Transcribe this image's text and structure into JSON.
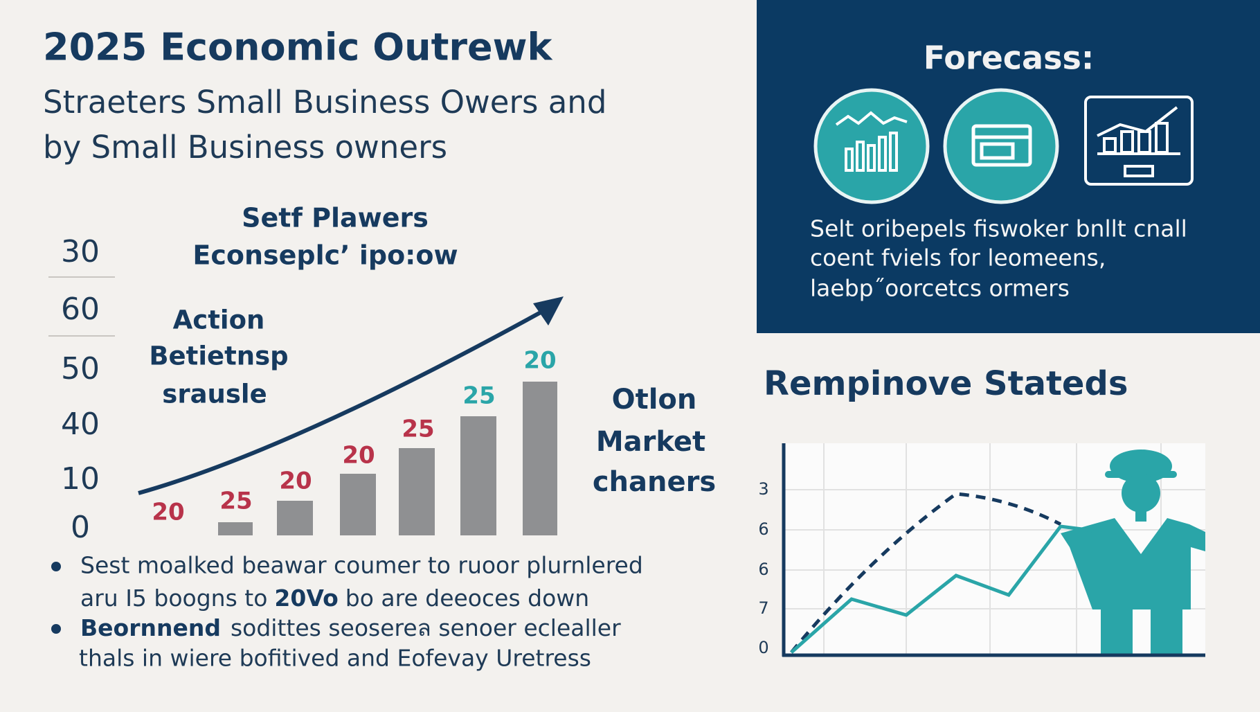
{
  "header": {
    "title": "2025 Economic Outrewk",
    "subtitle": [
      "Straeters Small Business Owers and",
      "by Small Business owners"
    ]
  },
  "left_chart": {
    "title": [
      "Setf Plawers",
      "Econseplc’ ipo:ow"
    ],
    "y_labels": [
      "30",
      "60",
      "50",
      "40",
      "10",
      "0"
    ],
    "annotation": [
      "Action",
      "Betietnsp",
      "srausle"
    ],
    "bar_labels": [
      "20",
      "25",
      "20",
      "20",
      "25",
      "25",
      "20"
    ],
    "side_note": [
      "Otlon",
      "Market",
      "chaners"
    ]
  },
  "bullets": [
    {
      "lines": [
        [
          "Sest moalked beawar coumer to ruoor plurnlered"
        ],
        [
          "aru I5 boogns to",
          "20Vo",
          "bo are deeoces down"
        ]
      ]
    },
    {
      "lines": [
        [
          "Beornnend",
          "soditte​s seosereล senoer eclealler"
        ],
        [
          "thals in wiere bofitived and Eofevay Uretress"
        ]
      ]
    }
  ],
  "forecast": {
    "title": "Forecass:",
    "text": [
      "Selt oribepels fiswoker bnllt cnall",
      "coent fviels for leomeens,",
      "laebp˝oorcetcs ormers"
    ]
  },
  "line_chart": {
    "title": "Rempinove Stateds",
    "y_labels": [
      "3",
      "6",
      "6",
      "7",
      "0"
    ]
  }
}
